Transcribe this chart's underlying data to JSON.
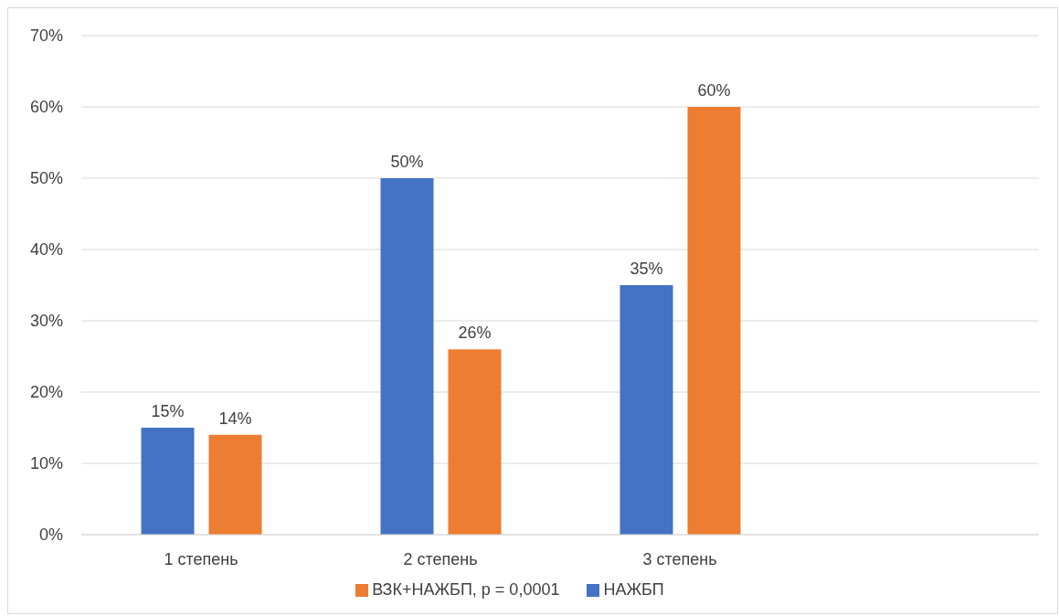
{
  "chart_data": {
    "type": "bar",
    "categories": [
      "1 степень",
      "2 степень",
      "3 степень",
      null
    ],
    "series": [
      {
        "name": "НАЖБП",
        "color": "#4472c4",
        "values": [
          15,
          50,
          35,
          null
        ],
        "value_labels": [
          "15%",
          "50%",
          "35%",
          null
        ]
      },
      {
        "name": "ВЗК+НАЖБП, p = 0,0001",
        "color": "#ed7d31",
        "values": [
          14,
          26,
          60,
          null
        ],
        "value_labels": [
          "14%",
          "26%",
          "60%",
          null
        ]
      }
    ],
    "ylim": [
      0,
      70
    ],
    "yticks": [
      {
        "value": 0,
        "label": "0%"
      },
      {
        "value": 10,
        "label": "10%"
      },
      {
        "value": 20,
        "label": "20%"
      },
      {
        "value": 30,
        "label": "30%"
      },
      {
        "value": 40,
        "label": "40%"
      },
      {
        "value": 50,
        "label": "50%"
      },
      {
        "value": 60,
        "label": "60%"
      },
      {
        "value": 70,
        "label": "70%"
      }
    ],
    "grid": "y",
    "legend": "bottom"
  }
}
